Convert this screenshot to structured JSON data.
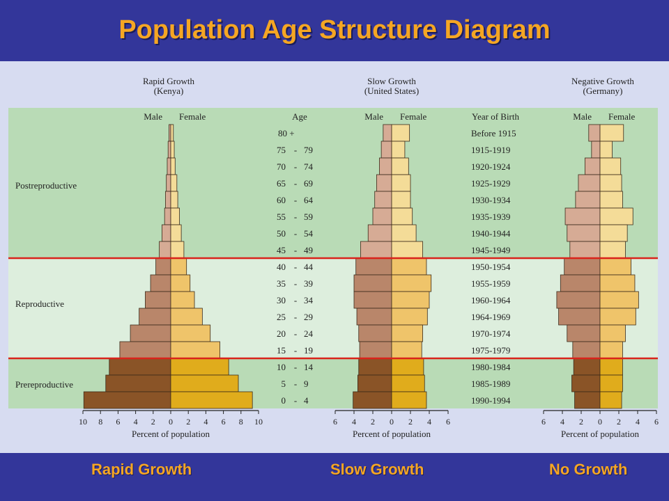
{
  "title": "Population Age Structure Diagram",
  "footer": {
    "rapid": "Rapid Growth",
    "slow": "Slow Growth",
    "none": "No Growth"
  },
  "colors": {
    "title": "#f5a623",
    "band": "#33369a",
    "postreproductive_bg": "#b9dbb6",
    "reproductive_bg": "#ddeedd",
    "prereproductive_bg": "#b9dbb6",
    "divider": "#d9231b",
    "male": [
      "#d6ab95",
      "#b9866a",
      "#8a5427"
    ],
    "female": [
      "#f4dc98",
      "#efc46a",
      "#e0ac1c"
    ]
  },
  "chart_data": {
    "type": "bar",
    "age_header": "Age",
    "year_header": "Year  of Birth",
    "male_label": "Male",
    "female_label": "Female",
    "xlabel": "Percent   of population",
    "stage_labels": [
      "Postreproductive",
      "Reproductive",
      "Prereproductive"
    ],
    "age_groups": [
      "80 +",
      "75 - 79",
      "70 - 74",
      "65 - 69",
      "60 - 64",
      "55 - 59",
      "50 - 54",
      "45 - 49",
      "40 - 44",
      "35 - 39",
      "30 - 34",
      "25 - 29",
      "20 - 24",
      "15 - 19",
      "10 - 14",
      "5 - 9",
      "0 - 4"
    ],
    "years_of_birth": [
      "Before 1915",
      "1915-1919",
      "1920-1924",
      "1925-1929",
      "1930-1934",
      "1935-1939",
      "1940-1944",
      "1945-1949",
      "1950-1954",
      "1955-1959",
      "1960-1964",
      "1964-1969",
      "1970-1974",
      "1975-1979",
      "1980-1984",
      "1985-1989",
      "1990-1994"
    ],
    "panels": [
      {
        "title": "Rapid  Growth",
        "subtitle": "(Kenya)",
        "xlim": 10,
        "ticks": [
          "10",
          "8",
          "6",
          "4",
          "2",
          "0",
          "2",
          "4",
          "6",
          "8",
          "10"
        ],
        "male": [
          0.2,
          0.3,
          0.4,
          0.5,
          0.6,
          0.7,
          1.0,
          1.3,
          1.7,
          2.3,
          2.9,
          3.6,
          4.6,
          5.8,
          7.0,
          7.4,
          9.9
        ],
        "female": [
          0.3,
          0.4,
          0.5,
          0.7,
          0.8,
          1.0,
          1.2,
          1.5,
          1.8,
          2.2,
          2.7,
          3.6,
          4.5,
          5.6,
          6.6,
          7.7,
          9.3
        ]
      },
      {
        "title": "Slow  Growth",
        "subtitle": "(United  States)",
        "xlim": 6,
        "ticks": [
          "6",
          "4",
          "2",
          "0",
          "2",
          "4",
          "6"
        ],
        "male": [
          0.9,
          1.1,
          1.3,
          1.6,
          1.8,
          2.0,
          2.5,
          3.3,
          3.8,
          4.0,
          4.0,
          3.7,
          3.5,
          3.4,
          3.5,
          3.6,
          4.1
        ],
        "female": [
          1.9,
          1.4,
          1.8,
          2.0,
          2.0,
          2.2,
          2.6,
          3.3,
          3.7,
          4.2,
          4.0,
          3.8,
          3.3,
          3.2,
          3.4,
          3.5,
          3.7
        ]
      },
      {
        "title": "Negative Growth",
        "subtitle": "(Germany)",
        "xlim": 6,
        "ticks": [
          "6",
          "4",
          "2",
          "0",
          "2",
          "4",
          "6"
        ],
        "male": [
          1.2,
          0.9,
          1.6,
          2.3,
          2.6,
          3.7,
          3.5,
          3.2,
          3.8,
          4.2,
          4.6,
          4.4,
          3.5,
          2.9,
          2.8,
          3.0,
          2.7
        ],
        "female": [
          2.5,
          1.3,
          2.2,
          2.3,
          2.4,
          3.5,
          2.9,
          2.7,
          3.3,
          3.7,
          4.1,
          3.8,
          2.7,
          2.4,
          2.4,
          2.4,
          2.3
        ]
      }
    ]
  }
}
